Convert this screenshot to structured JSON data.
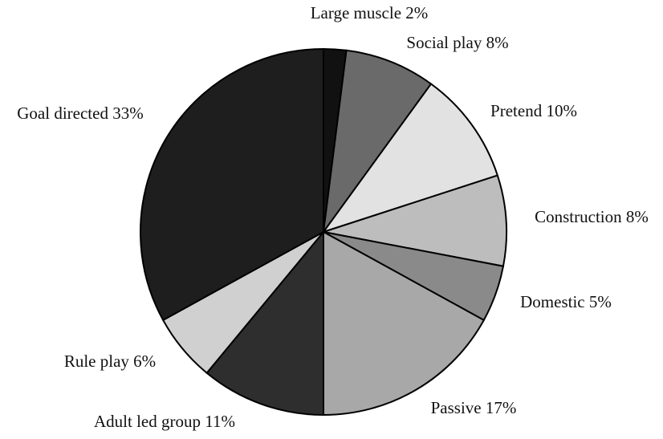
{
  "chart_data": {
    "type": "pie",
    "categories": [
      "Large muscle",
      "Social play",
      "Pretend",
      "Construction",
      "Domestic",
      "Passive",
      "Adult led group",
      "Rule play",
      "Goal directed"
    ],
    "values": [
      2,
      8,
      10,
      8,
      5,
      17,
      11,
      6,
      33
    ],
    "value_labels": [
      "2%",
      "8%",
      "10%",
      "8%",
      "5%",
      "17%",
      "11%",
      "6%",
      "33%"
    ],
    "colors": [
      "#111111",
      "#6a6a6a",
      "#e2e2e2",
      "#bdbdbd",
      "#8a8a8a",
      "#a8a8a8",
      "#2e2e2e",
      "#d0d0d0",
      "#1e1e1e"
    ]
  }
}
